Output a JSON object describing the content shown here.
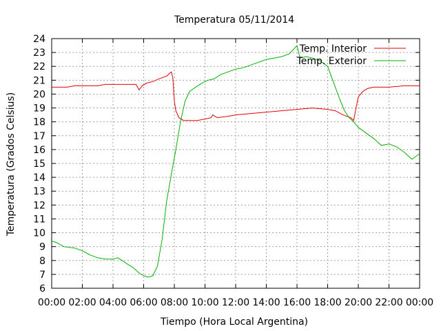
{
  "chart_data": {
    "type": "line",
    "title": "Temperatura 05/11/2014",
    "xlabel": "Tiempo (Hora Local Argentina)",
    "ylabel": "Temperatura (Grados Celsius)",
    "xlim": [
      0,
      24
    ],
    "ylim": [
      6,
      24
    ],
    "xtick_labels": [
      "00:00",
      "02:00",
      "04:00",
      "06:00",
      "08:00",
      "10:00",
      "12:00",
      "14:00",
      "16:00",
      "18:00",
      "20:00",
      "22:00",
      "00:00"
    ],
    "ytick_labels": [
      "6",
      "7",
      "8",
      "9",
      "10",
      "11",
      "12",
      "13",
      "14",
      "15",
      "16",
      "17",
      "18",
      "19",
      "20",
      "21",
      "22",
      "23",
      "24"
    ],
    "grid": true,
    "legend_position": "top-right",
    "series": [
      {
        "name": "Temp. Interior",
        "color": "#e00000",
        "x": [
          0,
          0.5,
          1,
          1.5,
          2,
          2.5,
          3,
          3.5,
          4,
          4.5,
          5,
          5.5,
          5.7,
          5.9,
          6.2,
          6.6,
          7,
          7.5,
          7.8,
          7.9,
          8.0,
          8.1,
          8.3,
          8.6,
          9,
          9.5,
          10,
          10.4,
          10.5,
          10.8,
          11.5,
          12,
          13,
          14,
          15,
          16,
          17,
          18,
          18.5,
          19,
          19.5,
          19.7,
          19.85,
          20,
          20.3,
          20.6,
          21,
          22,
          23,
          24
        ],
        "y": [
          20.5,
          20.5,
          20.5,
          20.6,
          20.6,
          20.6,
          20.6,
          20.7,
          20.7,
          20.7,
          20.7,
          20.7,
          20.3,
          20.6,
          20.8,
          20.9,
          21.1,
          21.3,
          21.6,
          21.2,
          19.5,
          18.8,
          18.3,
          18.1,
          18.1,
          18.1,
          18.2,
          18.3,
          18.5,
          18.3,
          18.4,
          18.5,
          18.6,
          18.7,
          18.8,
          18.9,
          19.0,
          18.9,
          18.8,
          18.5,
          18.3,
          18.1,
          19.0,
          19.8,
          20.2,
          20.4,
          20.5,
          20.5,
          20.6,
          20.6
        ]
      },
      {
        "name": "Temp. Exterior",
        "color": "#00b000",
        "x": [
          0,
          0.3,
          0.8,
          1.5,
          2,
          2.5,
          3,
          3.5,
          4,
          4.3,
          4.6,
          5,
          5.3,
          5.7,
          6,
          6.3,
          6.6,
          6.9,
          7.2,
          7.5,
          7.8,
          8.1,
          8.4,
          8.7,
          9,
          9.4,
          9.8,
          10.2,
          10.6,
          11,
          11.5,
          12,
          12.5,
          13,
          13.5,
          14,
          14.5,
          15,
          15.5,
          16,
          16.2,
          16.6,
          17,
          17.5,
          18,
          18.5,
          18.8,
          19.1,
          19.4,
          19.7,
          20,
          20.5,
          21,
          21.5,
          22,
          22.5,
          23,
          23.5,
          24
        ],
        "y": [
          9.4,
          9.3,
          9.0,
          8.9,
          8.7,
          8.4,
          8.2,
          8.1,
          8.1,
          8.2,
          8.0,
          7.7,
          7.5,
          7.1,
          6.9,
          6.8,
          6.9,
          7.6,
          9.5,
          12.3,
          14.2,
          16.0,
          18.0,
          19.5,
          20.2,
          20.5,
          20.8,
          21.0,
          21.1,
          21.4,
          21.6,
          21.8,
          21.9,
          22.1,
          22.3,
          22.5,
          22.6,
          22.7,
          22.9,
          23.5,
          22.6,
          22.7,
          22.6,
          22.4,
          22.0,
          20.5,
          19.6,
          18.8,
          18.3,
          18.0,
          17.6,
          17.2,
          16.8,
          16.3,
          16.4,
          16.2,
          15.8,
          15.3,
          15.7
        ]
      }
    ]
  }
}
